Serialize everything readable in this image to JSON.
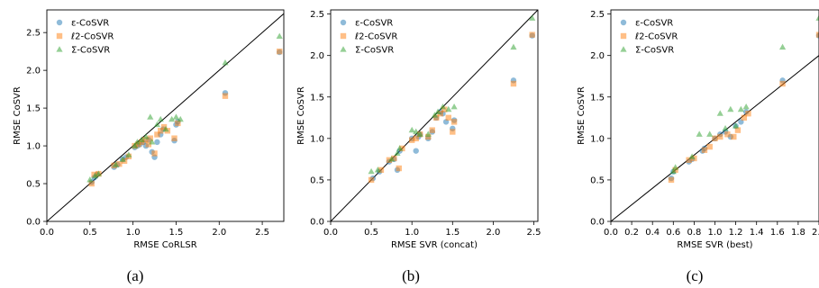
{
  "chart_data": [
    {
      "type": "scatter",
      "xlabel": "RMSE CoRLSR",
      "ylabel": "RMSE CoSVR",
      "caption": "(a)",
      "xlim": [
        0,
        2.75
      ],
      "ylim": [
        0,
        2.8
      ],
      "xticks": [
        0.0,
        0.5,
        1.0,
        1.5,
        2.0,
        2.5
      ],
      "xtick_labels": [
        "0.0",
        "0.5",
        "1.0",
        "1.5",
        "2.0",
        "2.5"
      ],
      "yticks": [
        0.0,
        0.5,
        1.0,
        1.5,
        2.0,
        2.5
      ],
      "ytick_labels": [
        "0.0",
        "0.5",
        "1.0",
        "1.5",
        "2.0",
        "2.5"
      ],
      "grid": false,
      "legend_position": "top-left",
      "diagonal": true,
      "series": [
        {
          "name": "ε-CoSVR",
          "color": "#1f77b4",
          "marker": "circle",
          "x": [
            0.52,
            0.55,
            0.58,
            0.78,
            0.82,
            0.88,
            0.92,
            1.02,
            1.05,
            1.08,
            1.12,
            1.15,
            1.18,
            1.22,
            1.25,
            1.28,
            1.32,
            1.35,
            1.48,
            1.5,
            1.52,
            2.07,
            2.7
          ],
          "y": [
            0.52,
            0.58,
            0.62,
            0.72,
            0.75,
            0.82,
            0.85,
            0.98,
            1.0,
            1.02,
            1.05,
            1.0,
            1.08,
            0.92,
            0.85,
            1.05,
            1.15,
            1.22,
            1.07,
            1.28,
            1.32,
            1.7,
            2.24
          ]
        },
        {
          "name": "ℓ2-CoSVR",
          "color": "#ff7f0e",
          "marker": "square",
          "x": [
            0.52,
            0.55,
            0.6,
            0.78,
            0.84,
            0.9,
            0.95,
            1.02,
            1.06,
            1.1,
            1.14,
            1.18,
            1.2,
            1.25,
            1.28,
            1.32,
            1.36,
            1.4,
            1.48,
            1.52,
            2.07,
            2.7
          ],
          "y": [
            0.5,
            0.62,
            0.63,
            0.74,
            0.76,
            0.8,
            0.86,
            1.0,
            1.02,
            1.05,
            1.08,
            1.02,
            1.1,
            0.9,
            1.15,
            1.2,
            1.25,
            1.2,
            1.1,
            1.3,
            1.66,
            2.25
          ]
        },
        {
          "name": "Σ-CoSVR",
          "color": "#2ca02c",
          "marker": "triangle",
          "x": [
            0.5,
            0.56,
            0.6,
            0.8,
            0.88,
            0.95,
            1.02,
            1.05,
            1.1,
            1.15,
            1.2,
            1.22,
            1.28,
            1.32,
            1.38,
            1.45,
            1.5,
            1.55,
            2.07,
            2.7
          ],
          "y": [
            0.55,
            0.6,
            0.63,
            0.75,
            0.82,
            0.88,
            1.0,
            1.05,
            1.08,
            1.12,
            1.38,
            1.05,
            1.28,
            1.35,
            1.22,
            1.35,
            1.38,
            1.35,
            2.1,
            2.45
          ]
        }
      ]
    },
    {
      "type": "scatter",
      "xlabel": "RMSE SVR (concat)",
      "ylabel": "RMSE CoSVR",
      "caption": "(b)",
      "xlim": [
        0,
        2.55
      ],
      "ylim": [
        0,
        2.55
      ],
      "xticks": [
        0.0,
        0.5,
        1.0,
        1.5,
        2.0,
        2.5
      ],
      "xtick_labels": [
        "0.0",
        "0.5",
        "1.0",
        "1.5",
        "2.0",
        "2.5"
      ],
      "yticks": [
        0.0,
        0.5,
        1.0,
        1.5,
        2.0,
        2.5
      ],
      "ytick_labels": [
        "0.0",
        "0.5",
        "1.0",
        "1.5",
        "2.0",
        "2.5"
      ],
      "grid": false,
      "legend_position": "top-left",
      "diagonal": true,
      "series": [
        {
          "name": "ε-CoSVR",
          "color": "#1f77b4",
          "marker": "circle",
          "x": [
            0.52,
            0.6,
            0.72,
            0.78,
            0.82,
            0.85,
            1.0,
            1.05,
            1.08,
            1.1,
            1.2,
            1.25,
            1.3,
            1.35,
            1.38,
            1.42,
            1.5,
            1.52,
            2.25,
            2.48
          ],
          "y": [
            0.52,
            0.6,
            0.72,
            0.75,
            0.62,
            0.85,
            1.0,
            0.85,
            1.02,
            1.05,
            1.0,
            1.08,
            1.25,
            1.32,
            1.3,
            1.2,
            1.12,
            1.22,
            1.7,
            2.24
          ]
        },
        {
          "name": "ℓ2-CoSVR",
          "color": "#ff7f0e",
          "marker": "square",
          "x": [
            0.5,
            0.62,
            0.72,
            0.78,
            0.84,
            0.88,
            1.0,
            1.05,
            1.1,
            1.2,
            1.25,
            1.3,
            1.35,
            1.4,
            1.45,
            1.5,
            1.52,
            2.25,
            2.48
          ],
          "y": [
            0.5,
            0.62,
            0.74,
            0.76,
            0.64,
            0.88,
            0.98,
            1.0,
            1.05,
            1.02,
            1.1,
            1.25,
            1.3,
            1.35,
            1.25,
            1.08,
            1.2,
            1.66,
            2.25
          ]
        },
        {
          "name": "Σ-CoSVR",
          "color": "#2ca02c",
          "marker": "triangle",
          "x": [
            0.5,
            0.58,
            0.75,
            0.82,
            0.85,
            1.0,
            1.05,
            1.1,
            1.2,
            1.28,
            1.32,
            1.38,
            1.45,
            1.52,
            2.25,
            2.48
          ],
          "y": [
            0.6,
            0.62,
            0.75,
            0.82,
            0.88,
            1.1,
            1.08,
            1.05,
            1.05,
            1.28,
            1.32,
            1.38,
            1.35,
            1.38,
            2.1,
            2.45
          ]
        }
      ]
    },
    {
      "type": "scatter",
      "xlabel": "RMSE SVR (best)",
      "ylabel": "RMSE CoSVR",
      "caption": "(c)",
      "xlim": [
        0,
        2.0
      ],
      "ylim": [
        0,
        2.55
      ],
      "xticks": [
        0.0,
        0.2,
        0.4,
        0.6,
        0.8,
        1.0,
        1.2,
        1.4,
        1.6,
        1.8,
        2.0
      ],
      "xtick_labels": [
        "0.0",
        "0.2",
        "0.4",
        "0.6",
        "0.8",
        "1.0",
        "1.2",
        "1.4",
        "1.6",
        "1.8",
        "2.0"
      ],
      "yticks": [
        0.0,
        0.5,
        1.0,
        1.5,
        2.0,
        2.5
      ],
      "ytick_labels": [
        "0.0",
        "0.5",
        "1.0",
        "1.5",
        "2.0",
        "2.5"
      ],
      "grid": false,
      "legend_position": "top-left",
      "diagonal": true,
      "series": [
        {
          "name": "ε-CoSVR",
          "color": "#1f77b4",
          "marker": "circle",
          "x": [
            0.58,
            0.6,
            0.75,
            0.78,
            0.88,
            0.9,
            1.0,
            1.05,
            1.1,
            1.15,
            1.2,
            1.25,
            1.3,
            1.65,
            2.0
          ],
          "y": [
            0.52,
            0.6,
            0.72,
            0.75,
            0.85,
            0.88,
            1.0,
            1.05,
            1.08,
            1.02,
            1.15,
            1.2,
            1.32,
            1.7,
            2.24
          ]
        },
        {
          "name": "ℓ2-CoSVR",
          "color": "#ff7f0e",
          "marker": "square",
          "x": [
            0.58,
            0.62,
            0.75,
            0.8,
            0.9,
            0.95,
            1.0,
            1.05,
            1.12,
            1.18,
            1.22,
            1.28,
            1.32,
            1.65,
            2.0
          ],
          "y": [
            0.5,
            0.62,
            0.74,
            0.76,
            0.86,
            0.9,
            1.0,
            1.02,
            1.05,
            1.02,
            1.1,
            1.25,
            1.3,
            1.66,
            2.25
          ]
        },
        {
          "name": "Σ-CoSVR",
          "color": "#2ca02c",
          "marker": "triangle",
          "x": [
            0.6,
            0.62,
            0.78,
            0.85,
            0.95,
            1.05,
            1.1,
            1.15,
            1.2,
            1.25,
            1.3,
            1.65,
            2.0
          ],
          "y": [
            0.6,
            0.65,
            0.78,
            1.05,
            1.05,
            1.3,
            1.12,
            1.35,
            1.15,
            1.35,
            1.38,
            2.1,
            2.45
          ]
        }
      ]
    }
  ]
}
